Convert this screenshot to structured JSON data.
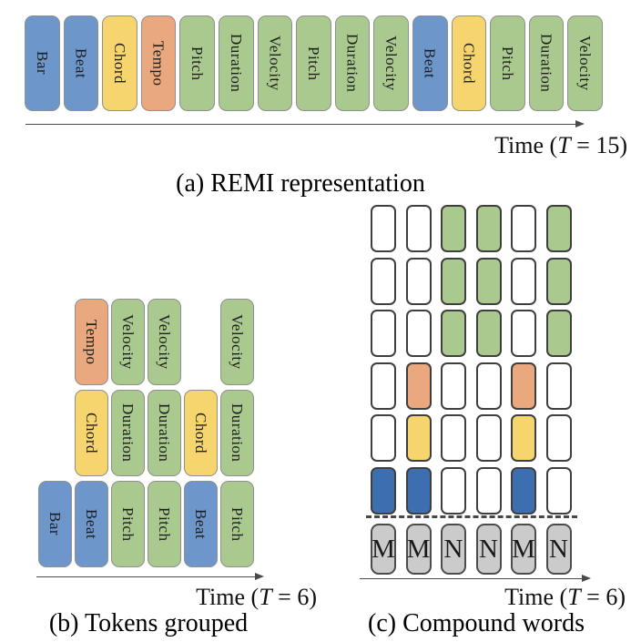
{
  "colors": {
    "blue": "#6d96cb",
    "blue_dark": "#3c6eb0",
    "yellow": "#f7d56e",
    "orange": "#e9a87d",
    "green": "#a9c98e",
    "white": "#ffffff",
    "gray": "#cbcbcb"
  },
  "panel_a": {
    "caption": "(a) REMI representation",
    "time": {
      "pre": "Time (",
      "t": "T",
      "post": " = 15)"
    },
    "tokens": [
      {
        "label": "Bar",
        "color": "blue"
      },
      {
        "label": "Beat",
        "color": "blue"
      },
      {
        "label": "Chord",
        "color": "yellow"
      },
      {
        "label": "Tempo",
        "color": "orange"
      },
      {
        "label": "Pitch",
        "color": "green"
      },
      {
        "label": "Duration",
        "color": "green"
      },
      {
        "label": "Velocity",
        "color": "green"
      },
      {
        "label": "Pitch",
        "color": "green"
      },
      {
        "label": "Duration",
        "color": "green"
      },
      {
        "label": "Velocity",
        "color": "green"
      },
      {
        "label": "Beat",
        "color": "blue"
      },
      {
        "label": "Chord",
        "color": "yellow"
      },
      {
        "label": "Pitch",
        "color": "green"
      },
      {
        "label": "Duration",
        "color": "green"
      },
      {
        "label": "Velocity",
        "color": "green"
      }
    ]
  },
  "panel_b": {
    "caption": "(b) Tokens grouped",
    "time": {
      "pre": "Time (",
      "t": "T",
      "post": " = 6)"
    },
    "rows": [
      [
        null,
        {
          "label": "Tempo",
          "color": "orange"
        },
        {
          "label": "Velocity",
          "color": "green"
        },
        {
          "label": "Velocity",
          "color": "green"
        },
        null,
        {
          "label": "Velocity",
          "color": "green"
        }
      ],
      [
        null,
        {
          "label": "Chord",
          "color": "yellow"
        },
        {
          "label": "Duration",
          "color": "green"
        },
        {
          "label": "Duration",
          "color": "green"
        },
        {
          "label": "Chord",
          "color": "yellow"
        },
        {
          "label": "Duration",
          "color": "green"
        }
      ],
      [
        {
          "label": "Bar",
          "color": "blue"
        },
        {
          "label": "Beat",
          "color": "blue"
        },
        {
          "label": "Pitch",
          "color": "green"
        },
        {
          "label": "Pitch",
          "color": "green"
        },
        {
          "label": "Beat",
          "color": "blue"
        },
        {
          "label": "Pitch",
          "color": "green"
        }
      ]
    ]
  },
  "panel_c": {
    "caption": "(c) Compound words",
    "time": {
      "pre": "Time (",
      "t": "T",
      "post": " = 6)"
    },
    "grid": [
      [
        "white",
        "white",
        "green",
        "green",
        "white",
        "green"
      ],
      [
        "white",
        "white",
        "green",
        "green",
        "white",
        "green"
      ],
      [
        "white",
        "white",
        "green",
        "green",
        "white",
        "green"
      ],
      [
        "white",
        "orange",
        "white",
        "white",
        "orange",
        "white"
      ],
      [
        "white",
        "yellow",
        "white",
        "white",
        "yellow",
        "white"
      ],
      [
        "blue_dark",
        "blue_dark",
        "white",
        "white",
        "blue_dark",
        "white"
      ]
    ],
    "word_types": [
      "M",
      "M",
      "N",
      "N",
      "M",
      "N"
    ]
  }
}
